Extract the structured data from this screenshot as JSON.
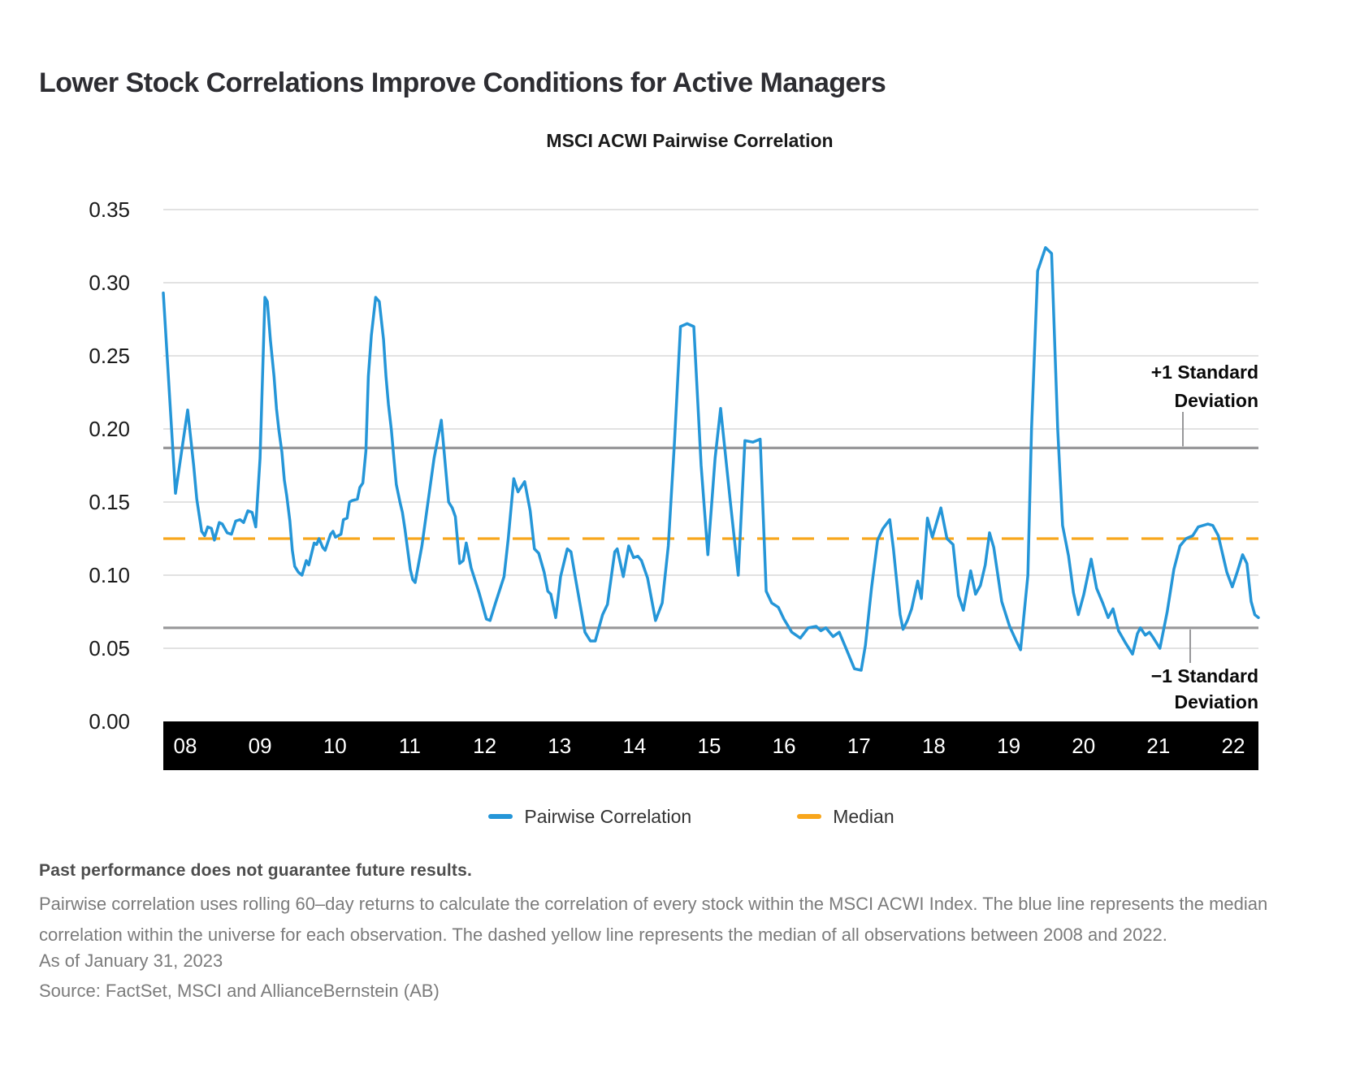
{
  "page": {
    "title": "Lower Stock Correlations Improve Conditions for Active Managers"
  },
  "chart_data": {
    "type": "line",
    "title": "MSCI ACWI Pairwise Correlation",
    "xlabel": "",
    "ylabel": "",
    "x_axis": {
      "labels": [
        "08",
        "09",
        "10",
        "11",
        "12",
        "13",
        "14",
        "15",
        "16",
        "17",
        "18",
        "19",
        "20",
        "21",
        "22"
      ],
      "unit": "year (2008-2022)"
    },
    "y_axis": {
      "min": 0.0,
      "max": 0.35,
      "ticks": [
        {
          "label": "0.35",
          "value": 0.35
        },
        {
          "label": "0.30",
          "value": 0.3
        },
        {
          "label": "0.25",
          "value": 0.25
        },
        {
          "label": "0.20",
          "value": 0.2
        },
        {
          "label": "0.15",
          "value": 0.15
        },
        {
          "label": "0.10",
          "value": 0.1
        },
        {
          "label": "0.05",
          "value": 0.05
        },
        {
          "label": "0.00",
          "value": 0.0
        }
      ]
    },
    "grid": true,
    "legend_position": "bottom",
    "legend": [
      {
        "label": "Pairwise Correlation",
        "color": "#2596D8",
        "style": "solid"
      },
      {
        "label": "Median",
        "color": "#F8A61C",
        "style": "dashed"
      }
    ],
    "reference_lines": [
      {
        "id": "plus1sd",
        "label_lines": [
          "+1 Standard",
          "Deviation"
        ],
        "value": 0.187,
        "color": "#98989A",
        "style": "solid"
      },
      {
        "id": "median",
        "label_lines": [
          "Median"
        ],
        "value": 0.125,
        "color": "#F8A61C",
        "style": "dashed"
      },
      {
        "id": "minus1sd",
        "label_lines": [
          "−1 Standard",
          "Deviation"
        ],
        "value": 0.064,
        "color": "#98989A",
        "style": "solid"
      }
    ],
    "series": [
      {
        "name": "Pairwise Correlation",
        "color": "#2596D8",
        "x_unit": "months_since_jan_2008",
        "points": [
          [
            0,
            0.293
          ],
          [
            2,
            0.156
          ],
          [
            4,
            0.213
          ],
          [
            5,
            0.175
          ],
          [
            5.5,
            0.152
          ],
          [
            6.3,
            0.13
          ],
          [
            6.8,
            0.127
          ],
          [
            7.3,
            0.133
          ],
          [
            7.9,
            0.132
          ],
          [
            8.4,
            0.124
          ],
          [
            9.2,
            0.136
          ],
          [
            9.7,
            0.135
          ],
          [
            10.5,
            0.129
          ],
          [
            11.2,
            0.128
          ],
          [
            11.9,
            0.137
          ],
          [
            12.6,
            0.138
          ],
          [
            13.2,
            0.136
          ],
          [
            13.9,
            0.144
          ],
          [
            14.6,
            0.143
          ],
          [
            15.2,
            0.133
          ],
          [
            15.9,
            0.18
          ],
          [
            16.7,
            0.29
          ],
          [
            17.1,
            0.287
          ],
          [
            17.6,
            0.261
          ],
          [
            18.2,
            0.236
          ],
          [
            18.6,
            0.214
          ],
          [
            19,
            0.199
          ],
          [
            19.5,
            0.184
          ],
          [
            19.9,
            0.165
          ],
          [
            20.3,
            0.154
          ],
          [
            20.8,
            0.137
          ],
          [
            21.2,
            0.117
          ],
          [
            21.6,
            0.106
          ],
          [
            22.2,
            0.102
          ],
          [
            22.8,
            0.1
          ],
          [
            23.5,
            0.11
          ],
          [
            23.9,
            0.107
          ],
          [
            24.8,
            0.122
          ],
          [
            25.2,
            0.121
          ],
          [
            25.6,
            0.125
          ],
          [
            26.2,
            0.119
          ],
          [
            26.6,
            0.117
          ],
          [
            27.5,
            0.128
          ],
          [
            27.9,
            0.13
          ],
          [
            28.3,
            0.126
          ],
          [
            29.2,
            0.128
          ],
          [
            29.6,
            0.138
          ],
          [
            30.2,
            0.139
          ],
          [
            30.6,
            0.15
          ],
          [
            31,
            0.151
          ],
          [
            31.9,
            0.152
          ],
          [
            32.3,
            0.16
          ],
          [
            32.8,
            0.163
          ],
          [
            33.3,
            0.185
          ],
          [
            33.7,
            0.236
          ],
          [
            34.2,
            0.264
          ],
          [
            34.9,
            0.29
          ],
          [
            35.5,
            0.287
          ],
          [
            36.2,
            0.261
          ],
          [
            36.6,
            0.236
          ],
          [
            37,
            0.217
          ],
          [
            37.5,
            0.199
          ],
          [
            37.9,
            0.18
          ],
          [
            38.3,
            0.162
          ],
          [
            38.9,
            0.15
          ],
          [
            39.3,
            0.143
          ],
          [
            39.7,
            0.132
          ],
          [
            40.6,
            0.104
          ],
          [
            41,
            0.097
          ],
          [
            41.4,
            0.095
          ],
          [
            42.5,
            0.12
          ],
          [
            43.5,
            0.15
          ],
          [
            44.5,
            0.18
          ],
          [
            45.7,
            0.206
          ],
          [
            46.9,
            0.15
          ],
          [
            47.5,
            0.146
          ],
          [
            48,
            0.14
          ],
          [
            48.7,
            0.108
          ],
          [
            49.3,
            0.11
          ],
          [
            49.8,
            0.122
          ],
          [
            50.6,
            0.105
          ],
          [
            51.9,
            0.088
          ],
          [
            53.1,
            0.07
          ],
          [
            53.7,
            0.069
          ],
          [
            54.6,
            0.081
          ],
          [
            56,
            0.099
          ],
          [
            56.7,
            0.125
          ],
          [
            57.6,
            0.166
          ],
          [
            58.3,
            0.157
          ],
          [
            59.4,
            0.164
          ],
          [
            60.3,
            0.144
          ],
          [
            61,
            0.118
          ],
          [
            61.7,
            0.115
          ],
          [
            62.6,
            0.102
          ],
          [
            63.2,
            0.089
          ],
          [
            63.7,
            0.087
          ],
          [
            64.5,
            0.071
          ],
          [
            65.3,
            0.099
          ],
          [
            66.4,
            0.118
          ],
          [
            67,
            0.116
          ],
          [
            67.7,
            0.099
          ],
          [
            68.5,
            0.08
          ],
          [
            69.3,
            0.061
          ],
          [
            70.2,
            0.055
          ],
          [
            71,
            0.055
          ],
          [
            72.2,
            0.073
          ],
          [
            73,
            0.08
          ],
          [
            74.2,
            0.116
          ],
          [
            74.6,
            0.118
          ],
          [
            75.6,
            0.099
          ],
          [
            76.5,
            0.12
          ],
          [
            77.3,
            0.112
          ],
          [
            78,
            0.113
          ],
          [
            78.6,
            0.11
          ],
          [
            79.6,
            0.098
          ],
          [
            80.9,
            0.069
          ],
          [
            82,
            0.081
          ],
          [
            83,
            0.12
          ],
          [
            84,
            0.19
          ],
          [
            85,
            0.27
          ],
          [
            86.1,
            0.272
          ],
          [
            87.2,
            0.27
          ],
          [
            88.4,
            0.175
          ],
          [
            89.5,
            0.114
          ],
          [
            90.7,
            0.18
          ],
          [
            91.6,
            0.214
          ],
          [
            93.2,
            0.15
          ],
          [
            94.5,
            0.1
          ],
          [
            95.6,
            0.192
          ],
          [
            96.9,
            0.191
          ],
          [
            98.1,
            0.193
          ],
          [
            99.1,
            0.089
          ],
          [
            100,
            0.081
          ],
          [
            101.1,
            0.078
          ],
          [
            102,
            0.07
          ],
          [
            103.3,
            0.061
          ],
          [
            104.7,
            0.057
          ],
          [
            106,
            0.064
          ],
          [
            107.3,
            0.065
          ],
          [
            108.1,
            0.062
          ],
          [
            108.9,
            0.064
          ],
          [
            110.1,
            0.058
          ],
          [
            111.1,
            0.061
          ],
          [
            112.4,
            0.048
          ],
          [
            113.6,
            0.036
          ],
          [
            114.7,
            0.035
          ],
          [
            115.4,
            0.052
          ],
          [
            116.4,
            0.091
          ],
          [
            117.4,
            0.124
          ],
          [
            118.3,
            0.132
          ],
          [
            119.4,
            0.138
          ],
          [
            120,
            0.118
          ],
          [
            121.1,
            0.073
          ],
          [
            121.6,
            0.063
          ],
          [
            122.3,
            0.069
          ],
          [
            123,
            0.077
          ],
          [
            124,
            0.096
          ],
          [
            124.6,
            0.084
          ],
          [
            125.6,
            0.139
          ],
          [
            126.4,
            0.126
          ],
          [
            127.8,
            0.146
          ],
          [
            128.8,
            0.125
          ],
          [
            129.8,
            0.121
          ],
          [
            130.7,
            0.086
          ],
          [
            131.5,
            0.076
          ],
          [
            132.7,
            0.103
          ],
          [
            133.5,
            0.087
          ],
          [
            134.3,
            0.093
          ],
          [
            135.1,
            0.107
          ],
          [
            135.8,
            0.129
          ],
          [
            136.5,
            0.119
          ],
          [
            137.8,
            0.082
          ],
          [
            139.1,
            0.065
          ],
          [
            140.2,
            0.055
          ],
          [
            140.9,
            0.049
          ],
          [
            142.1,
            0.1
          ],
          [
            142.7,
            0.2
          ],
          [
            143.7,
            0.308
          ],
          [
            145,
            0.324
          ],
          [
            146,
            0.32
          ],
          [
            147,
            0.2
          ],
          [
            147.8,
            0.134
          ],
          [
            148.8,
            0.113
          ],
          [
            149.6,
            0.088
          ],
          [
            150.4,
            0.073
          ],
          [
            151.3,
            0.087
          ],
          [
            152.5,
            0.111
          ],
          [
            153.4,
            0.091
          ],
          [
            154.4,
            0.081
          ],
          [
            155.3,
            0.071
          ],
          [
            156.1,
            0.077
          ],
          [
            157,
            0.062
          ],
          [
            158.1,
            0.054
          ],
          [
            159.3,
            0.046
          ],
          [
            160.1,
            0.06
          ],
          [
            160.6,
            0.064
          ],
          [
            161.4,
            0.059
          ],
          [
            162.1,
            0.061
          ],
          [
            162.6,
            0.058
          ],
          [
            163.8,
            0.05
          ],
          [
            165,
            0.075
          ],
          [
            166.1,
            0.104
          ],
          [
            167.1,
            0.12
          ],
          [
            168.1,
            0.125
          ],
          [
            169.2,
            0.127
          ],
          [
            170.1,
            0.133
          ],
          [
            171.7,
            0.135
          ],
          [
            172.5,
            0.134
          ],
          [
            173.4,
            0.127
          ],
          [
            174.8,
            0.102
          ],
          [
            175.7,
            0.092
          ],
          [
            176.5,
            0.102
          ],
          [
            177.4,
            0.114
          ],
          [
            178.1,
            0.108
          ],
          [
            178.8,
            0.082
          ],
          [
            179.4,
            0.073
          ],
          [
            180,
            0.071
          ]
        ]
      }
    ],
    "colors": {
      "grid": "#D8D8D8",
      "axis_bar": "#000000",
      "axis_bar_text": "#FFFFFF",
      "tick_text": "#1A1A1A",
      "annotation_text": "#0A0A0A"
    }
  },
  "legend": {
    "pairwise_label": "Pairwise Correlation",
    "median_label": "Median"
  },
  "footer": {
    "disclaimer_bold": "Past performance does not guarantee future results.",
    "description": "Pairwise correlation uses rolling 60–day returns to calculate the correlation of every stock within the MSCI ACWI Index. The blue line represents the median correlation within the universe for each observation. The dashed yellow line represents the median of all observations between 2008 and 2022.",
    "as_of": "As of January 31, 2023",
    "source": "Source: FactSet, MSCI and AllianceBernstein (AB)"
  }
}
